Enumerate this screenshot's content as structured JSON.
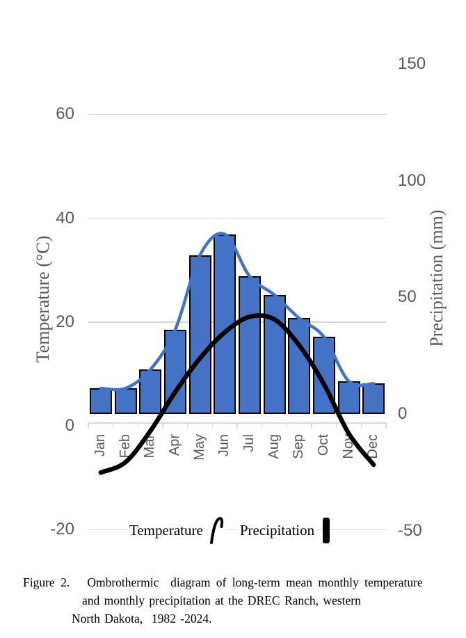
{
  "chart_data": {
    "type": "bar",
    "subtype": "combo bar+line ombrothermic diagram, dual y-axes",
    "categories": [
      "Jan",
      "Feb",
      "Mar",
      "Apr",
      "May",
      "Jun",
      "Jul",
      "Aug",
      "Sep",
      "Oct",
      "Nov",
      "Dec"
    ],
    "series": [
      {
        "name": "Temperature",
        "type": "line",
        "axis": "left",
        "color": "#000000",
        "values": [
          -9,
          -7,
          -1,
          6.5,
          13,
          18,
          21,
          20.5,
          15.5,
          8,
          -1.5,
          -7.5
        ]
      },
      {
        "name": "Precipitation",
        "type": "bar",
        "axis": "right",
        "color": "#4472C4",
        "values": [
          11,
          11,
          19,
          36,
          68,
          77,
          59,
          51,
          41,
          33,
          14,
          13
        ]
      },
      {
        "name": "Precipitation connector line",
        "type": "line",
        "axis": "right",
        "color": "#4472C4",
        "values": [
          11,
          11,
          19,
          36,
          68,
          77,
          59,
          51,
          41,
          33,
          14,
          13
        ]
      }
    ],
    "left_axis": {
      "label": "Temperature (°C)",
      "min": -20,
      "max": 60,
      "ticks": [
        60,
        40,
        20,
        0,
        -20
      ]
    },
    "right_axis": {
      "label": "Precipitation (mm)",
      "min": -50,
      "max": 150,
      "ticks": [
        150,
        100,
        50,
        0,
        -50
      ]
    },
    "grid": "horizontal gridlines at left-axis ticks only; category axis line with tick marks at month boundaries",
    "legend_position": "bottom",
    "legend_temperature": "Temperature",
    "legend_precipitation": "Precipitation",
    "colors": {
      "bar_fill": "#4472C4",
      "bar_border": "#000000",
      "temperature_line": "#000000",
      "gridline": "#D9D9D9",
      "tick_label": "#595959",
      "axis_title": "#595959"
    }
  },
  "caption": {
    "line1": "Figure 2.   Ombrothermic  diagram of long-term mean monthly temperature",
    "line2": "and monthly precipitation at the DREC Ranch, western",
    "line3": "North Dakota,  1982 -2024."
  }
}
